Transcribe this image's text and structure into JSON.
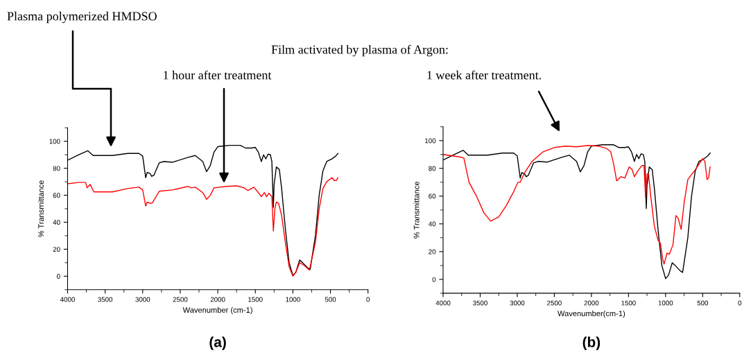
{
  "chart_data": [
    {
      "type": "line",
      "title": "(a)",
      "xlabel": "Wavenumber (cm-1)",
      "ylabel": "% Transmittance",
      "xlim": [
        4000,
        0
      ],
      "ylim": [
        -10,
        110
      ],
      "xticks": [
        4000,
        {
          "value": 3750,
          "label": null
        },
        3500,
        {
          "value": 3250,
          "label": null
        },
        3000,
        {
          "value": 2750,
          "label": null
        },
        2500,
        {
          "value": 2250,
          "label": null
        },
        2000,
        {
          "value": 1750,
          "label": null
        },
        1500,
        {
          "value": 1250,
          "label": null
        },
        1000,
        {
          "value": 750,
          "label": null
        },
        500,
        {
          "value": 250,
          "label": null
        },
        0
      ],
      "yticks": [
        {
          "value": -10,
          "label": null
        },
        0,
        {
          "value": 10,
          "label": null
        },
        20,
        {
          "value": 30,
          "label": null
        },
        40,
        {
          "value": 50,
          "label": null
        },
        60,
        {
          "value": 70,
          "label": null
        },
        80,
        {
          "value": 90,
          "label": null
        },
        100,
        {
          "value": 110,
          "label": null
        }
      ],
      "series": [
        {
          "color": "#000000",
          "x": [
            4000,
            3850,
            3730,
            3660,
            3400,
            3200,
            3050,
            3000,
            2960,
            2940,
            2900,
            2880,
            2850,
            2780,
            2720,
            2600,
            2400,
            2300,
            2200,
            2150,
            2100,
            2050,
            2000,
            1850,
            1700,
            1630,
            1550,
            1500,
            1460,
            1420,
            1390,
            1360,
            1330,
            1300,
            1280,
            1260,
            1250,
            1220,
            1180,
            1150,
            1100,
            1050,
            1000,
            960,
            910,
            870,
            800,
            770,
            700,
            650,
            600,
            550,
            480,
            430,
            400
          ],
          "values": [
            86,
            90,
            93,
            89.5,
            89.5,
            91,
            91,
            89,
            73,
            77,
            76,
            74,
            75,
            84,
            85,
            84.5,
            88,
            89.5,
            85,
            77.5,
            82,
            92,
            96,
            97,
            97,
            95,
            95,
            95.5,
            92,
            85,
            90,
            87,
            90.5,
            90,
            85,
            51,
            68,
            81,
            79,
            65,
            35,
            10,
            0.5,
            3,
            12,
            10,
            6,
            5,
            30,
            60,
            78,
            85,
            87,
            89,
            91
          ]
        },
        {
          "color": "#ff0000",
          "x": [
            4000,
            3850,
            3760,
            3740,
            3700,
            3650,
            3400,
            3200,
            3050,
            3000,
            2960,
            2940,
            2900,
            2870,
            2780,
            2600,
            2400,
            2350,
            2300,
            2200,
            2150,
            2100,
            2050,
            1900,
            1750,
            1650,
            1600,
            1520,
            1460,
            1420,
            1380,
            1350,
            1320,
            1280,
            1260,
            1240,
            1220,
            1190,
            1150,
            1100,
            1050,
            1000,
            960,
            910,
            850,
            780,
            700,
            650,
            600,
            550,
            480,
            450,
            420,
            400
          ],
          "values": [
            68.5,
            69.5,
            69.5,
            65.5,
            68,
            62.5,
            62.5,
            65,
            66,
            64,
            52,
            55,
            54,
            54.5,
            63,
            64,
            66.5,
            65.5,
            66,
            62,
            57,
            60,
            65.5,
            66.5,
            67,
            65.5,
            63.5,
            66,
            62,
            59,
            62,
            59,
            61.5,
            59,
            33.5,
            50,
            55,
            54,
            45,
            25,
            7,
            0,
            3,
            10,
            8,
            4.5,
            25,
            50,
            65,
            70,
            73,
            71,
            71,
            73
          ]
        }
      ],
      "annotations": [
        "Plasma polymerized HMDSO",
        "Film activated by plasma of Argon:",
        "1 hour after treatment"
      ]
    },
    {
      "type": "line",
      "title": "(b)",
      "xlabel": "Wavenumber(cm-1)",
      "ylabel": "% Transmittance",
      "xlim": [
        4000,
        0
      ],
      "ylim": [
        -10,
        110
      ],
      "xticks": [
        4000,
        {
          "value": 3750,
          "label": null
        },
        3500,
        {
          "value": 3250,
          "label": null
        },
        3000,
        {
          "value": 2750,
          "label": null
        },
        2500,
        {
          "value": 2250,
          "label": null
        },
        2000,
        {
          "value": 1750,
          "label": null
        },
        1500,
        {
          "value": 1250,
          "label": null
        },
        1000,
        {
          "value": 750,
          "label": null
        },
        500,
        {
          "value": 250,
          "label": null
        },
        0
      ],
      "yticks": [
        {
          "value": -10,
          "label": null
        },
        0,
        {
          "value": 10,
          "label": null
        },
        20,
        {
          "value": 30,
          "label": null
        },
        40,
        {
          "value": 50,
          "label": null
        },
        60,
        {
          "value": 70,
          "label": null
        },
        80,
        {
          "value": 90,
          "label": null
        },
        100,
        {
          "value": 110,
          "label": null
        }
      ],
      "series": [
        {
          "color": "#000000",
          "x": [
            4000,
            3850,
            3730,
            3660,
            3400,
            3200,
            3050,
            3000,
            2960,
            2940,
            2900,
            2880,
            2850,
            2780,
            2720,
            2600,
            2400,
            2300,
            2200,
            2150,
            2100,
            2050,
            2000,
            1850,
            1700,
            1630,
            1550,
            1500,
            1460,
            1420,
            1390,
            1360,
            1330,
            1300,
            1280,
            1260,
            1250,
            1220,
            1180,
            1150,
            1100,
            1050,
            1000,
            960,
            910,
            870,
            800,
            770,
            700,
            650,
            600,
            550,
            480,
            430,
            400
          ],
          "values": [
            86,
            90,
            93,
            89.5,
            89.5,
            91,
            91,
            89,
            73,
            77,
            76,
            74,
            75,
            84,
            85,
            84.5,
            88,
            89.5,
            85,
            77.5,
            82,
            92,
            96,
            97,
            97,
            95,
            95,
            95.5,
            92,
            85,
            90,
            87,
            90.5,
            90,
            85,
            51,
            68,
            81,
            79,
            65,
            35,
            10,
            0.5,
            3,
            12,
            10,
            6,
            5,
            30,
            60,
            78,
            85,
            87,
            89,
            91
          ]
        },
        {
          "color": "#ff0000",
          "x": [
            4000,
            3750,
            3720,
            3650,
            3550,
            3450,
            3360,
            3250,
            3150,
            3050,
            2990,
            2960,
            2900,
            2800,
            2650,
            2500,
            2350,
            2200,
            2050,
            1900,
            1800,
            1740,
            1700,
            1660,
            1600,
            1550,
            1490,
            1450,
            1420,
            1370,
            1320,
            1290,
            1270,
            1250,
            1230,
            1200,
            1150,
            1100,
            1070,
            1040,
            1020,
            980,
            950,
            900,
            860,
            830,
            790,
            750,
            700,
            600,
            500,
            470,
            440,
            420,
            400
          ],
          "values": [
            90,
            88,
            87.5,
            70,
            60,
            48,
            42,
            45,
            53,
            63,
            70,
            70,
            77,
            85,
            92,
            95,
            96,
            95.5,
            96.5,
            96,
            94.5,
            92,
            83,
            71,
            74,
            73,
            81,
            79,
            74,
            78.5,
            82,
            82,
            59,
            76,
            76,
            60,
            38,
            28,
            26,
            15,
            11,
            19,
            18,
            25,
            46,
            44,
            36,
            55,
            72,
            79,
            87,
            85,
            72,
            73,
            81
          ]
        }
      ],
      "annotations": [
        "1 week after treatment."
      ]
    }
  ]
}
